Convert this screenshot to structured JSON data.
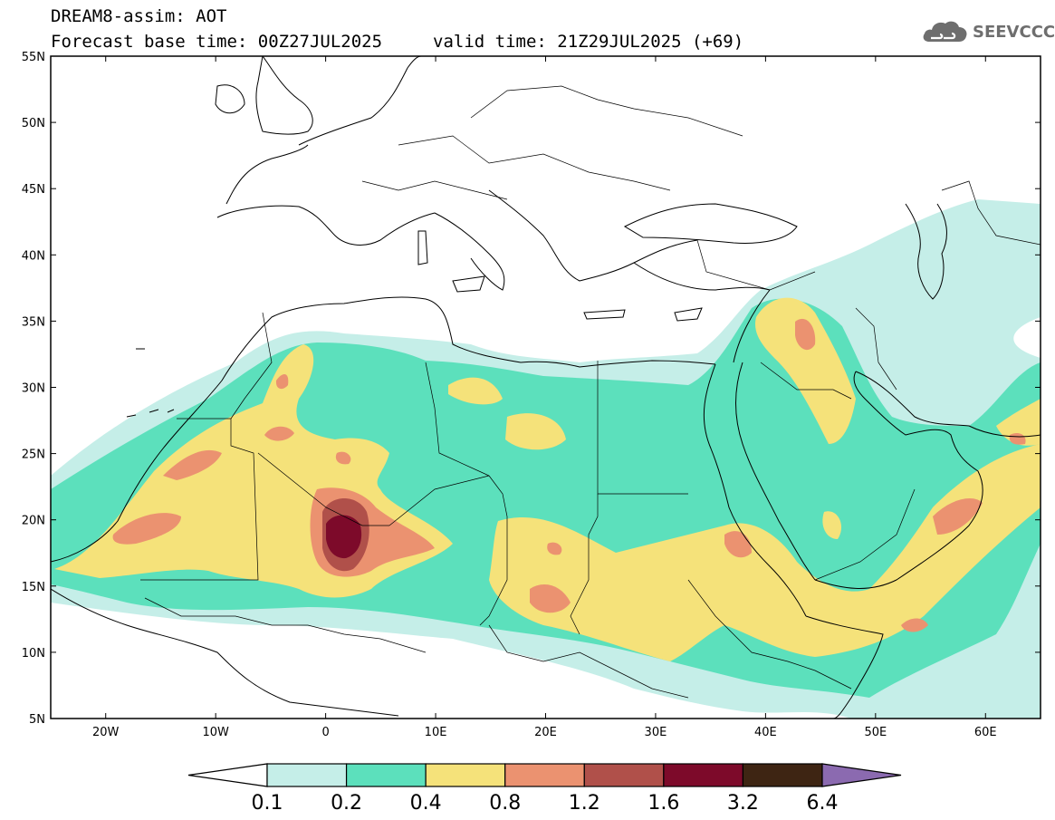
{
  "header": {
    "title": "DREAM8-assim: AOT",
    "forecast_base": "Forecast base time: 00Z27JUL2025",
    "valid_time": "valid time: 21Z29JUL2025 (+69)"
  },
  "logo": {
    "text": "SEEVCCC",
    "icon": "cloud-icon"
  },
  "map": {
    "lat_labels": [
      "55N",
      "50N",
      "45N",
      "40N",
      "35N",
      "30N",
      "25N",
      "20N",
      "15N",
      "10N",
      "5N"
    ],
    "lon_labels": [
      "20W",
      "10W",
      "0",
      "10E",
      "20E",
      "30E",
      "40E",
      "50E",
      "60E"
    ],
    "lat_values": [
      55,
      50,
      45,
      40,
      35,
      30,
      25,
      20,
      15,
      10,
      5
    ],
    "lon_values": [
      -20,
      -10,
      0,
      10,
      20,
      30,
      40,
      50,
      60
    ],
    "lon_range": [
      -25,
      65
    ],
    "lat_range": [
      5,
      55
    ]
  },
  "colorbar": {
    "labels": [
      "0.1",
      "0.2",
      "0.4",
      "0.8",
      "1.2",
      "1.6",
      "3.2",
      "6.4"
    ],
    "colors": [
      "#ffffff",
      "#c5eee8",
      "#5ce0bc",
      "#f5e27a",
      "#eb9270",
      "#b0504a",
      "#7d0a2a",
      "#3e2513",
      "#8b6ab0"
    ]
  },
  "colors": {
    "c1": "#c5eee8",
    "c2": "#5ce0bc",
    "c3": "#f5e27a",
    "c4": "#eb9270",
    "c5": "#b0504a",
    "c6": "#7d0a2a"
  }
}
